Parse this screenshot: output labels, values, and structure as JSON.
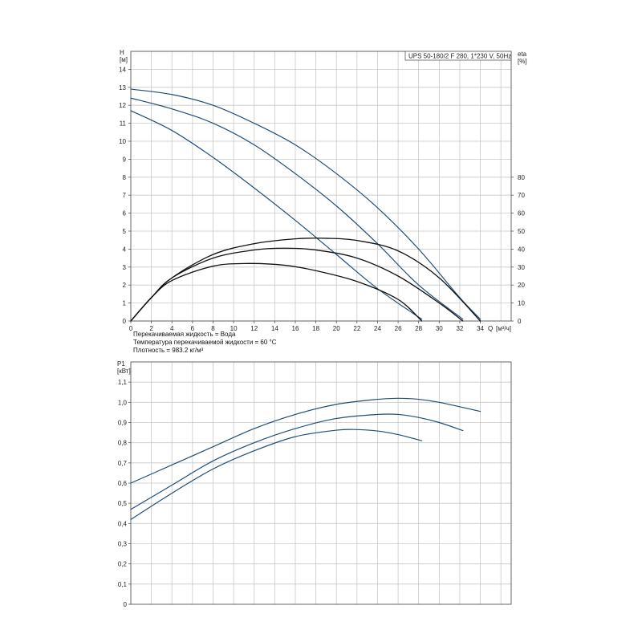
{
  "chart_data": [
    {
      "type": "line",
      "title": "UPS 50-180/2 F 280, 1*230 V, 50Hz",
      "ylabel": "H",
      "ylabel_unit": "[м]",
      "y2label": "eta",
      "y2label_unit": "[%]",
      "xlabel": "Q",
      "xlabel_unit": "[м³/ч]",
      "xlim": [
        0,
        37
      ],
      "ylim": [
        0,
        15
      ],
      "y2lim": [
        0,
        150
      ],
      "x_ticks": [
        0,
        2,
        4,
        6,
        8,
        10,
        12,
        14,
        16,
        18,
        20,
        22,
        24,
        26,
        28,
        30,
        32,
        34
      ],
      "y_ticks": [
        0,
        1,
        2,
        3,
        4,
        5,
        6,
        7,
        8,
        9,
        10,
        11,
        12,
        13,
        14
      ],
      "y2_ticks": [
        0,
        10,
        20,
        30,
        40,
        50,
        60,
        70,
        80
      ],
      "grid": true,
      "legend": "none",
      "notes": [
        "Перекачиваемая жидкость = Вода",
        "Температура перекачиваемой жидкости = 60 °C",
        "Плотность = 983.2 кг/м³"
      ],
      "series": [
        {
          "axis": "H",
          "color": "#1f4e79",
          "x": [
            0,
            4,
            8,
            12,
            16,
            20,
            24,
            28,
            32,
            34
          ],
          "y": [
            12.9,
            12.6,
            12.0,
            11.0,
            9.8,
            8.2,
            6.3,
            4.0,
            1.3,
            0.1
          ]
        },
        {
          "axis": "H",
          "color": "#1f4e79",
          "x": [
            0,
            4,
            8,
            12,
            16,
            20,
            24,
            28,
            32.3
          ],
          "y": [
            12.4,
            11.8,
            11.0,
            9.8,
            8.2,
            6.4,
            4.3,
            2.0,
            0.1
          ]
        },
        {
          "axis": "H",
          "color": "#1f4e79",
          "x": [
            0,
            4,
            8,
            12,
            16,
            20,
            24,
            28.3
          ],
          "y": [
            11.7,
            10.6,
            9.1,
            7.4,
            5.6,
            3.7,
            1.8,
            0.1
          ]
        },
        {
          "axis": "eta",
          "color": "#111111",
          "x": [
            0,
            2,
            4,
            8,
            12,
            16,
            19,
            22,
            26,
            30,
            34
          ],
          "y": [
            0,
            13,
            24,
            37,
            43,
            45.7,
            46,
            44.8,
            39,
            24,
            0
          ]
        },
        {
          "axis": "eta",
          "color": "#111111",
          "x": [
            0,
            2,
            4,
            8,
            12,
            15,
            18,
            22,
            26,
            30,
            32.3
          ],
          "y": [
            0,
            13,
            24,
            35,
            39.5,
            40.5,
            39.5,
            35,
            25,
            10,
            0
          ]
        },
        {
          "axis": "eta",
          "color": "#111111",
          "x": [
            0,
            2,
            4,
            8,
            11.5,
            15,
            18,
            22,
            26,
            28.3
          ],
          "y": [
            0,
            13,
            22.5,
            30.5,
            32,
            31,
            28,
            22,
            12,
            0
          ]
        }
      ]
    },
    {
      "type": "line",
      "ylabel": "P1",
      "ylabel_unit": "[кВт]",
      "xlim": [
        0,
        37
      ],
      "ylim": [
        0,
        1.2
      ],
      "x_ticks": [
        0,
        2,
        4,
        6,
        8,
        10,
        12,
        14,
        16,
        18,
        20,
        22,
        24,
        26,
        28,
        30,
        32,
        34
      ],
      "y_ticks": [
        "0",
        "0,1",
        "0,2",
        "0,3",
        "0,4",
        "0,5",
        "0,6",
        "0,7",
        "0,8",
        "0,9",
        "1,0",
        "1,1"
      ],
      "grid": true,
      "legend": "none",
      "series": [
        {
          "color": "#1f4e79",
          "x": [
            0,
            4,
            8,
            12,
            16,
            20,
            24,
            26,
            28,
            30,
            34
          ],
          "y": [
            0.6,
            0.69,
            0.78,
            0.87,
            0.94,
            0.99,
            1.015,
            1.02,
            1.015,
            1.0,
            0.955
          ]
        },
        {
          "color": "#1f4e79",
          "x": [
            0,
            4,
            8,
            12,
            16,
            20,
            24,
            26,
            28,
            30,
            32.3
          ],
          "y": [
            0.47,
            0.59,
            0.71,
            0.8,
            0.87,
            0.92,
            0.94,
            0.94,
            0.925,
            0.9,
            0.86
          ]
        },
        {
          "color": "#1f4e79",
          "x": [
            0,
            4,
            8,
            12,
            16,
            20,
            22,
            24,
            26,
            28.3
          ],
          "y": [
            0.42,
            0.55,
            0.67,
            0.76,
            0.83,
            0.862,
            0.865,
            0.858,
            0.84,
            0.81
          ]
        }
      ]
    }
  ]
}
